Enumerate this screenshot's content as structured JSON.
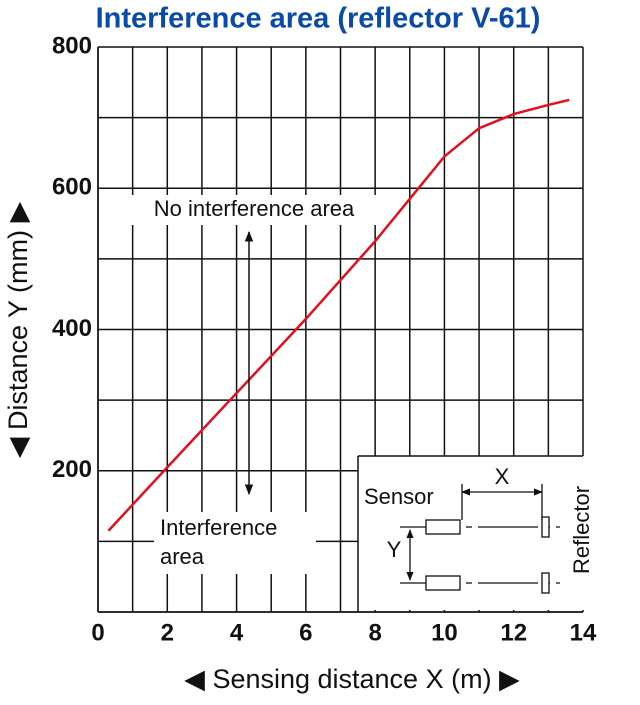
{
  "chart_data": {
    "type": "line",
    "title": "Interference area (reflector V-61)",
    "x_label": "◀ Sensing distance X (m) ▶",
    "y_label": "◀ Distance Y (mm) ▶",
    "xlim": [
      0,
      14
    ],
    "ylim": [
      0,
      800
    ],
    "xticks": [
      0,
      2,
      4,
      6,
      8,
      10,
      12,
      14
    ],
    "xminor": [
      1,
      3,
      5,
      7,
      9,
      11,
      13
    ],
    "yticks": [
      200,
      400,
      600,
      800
    ],
    "yminor": [
      100,
      300,
      500,
      700
    ],
    "grid": true,
    "x": [
      0.3,
      2,
      4,
      6,
      8,
      9,
      9.5,
      10,
      11,
      12,
      13,
      13.6
    ],
    "series": [
      {
        "color": "#e0101e",
        "values": [
          115,
          205,
          310,
          415,
          525,
          585,
          615,
          645,
          685,
          705,
          718,
          725
        ]
      }
    ],
    "annotations": {
      "upper": "No interference area",
      "lower": [
        "Interference",
        "area"
      ]
    },
    "inset": {
      "sensor": "Sensor",
      "x": "X",
      "y": "Y",
      "reflector": "Reflector"
    }
  }
}
